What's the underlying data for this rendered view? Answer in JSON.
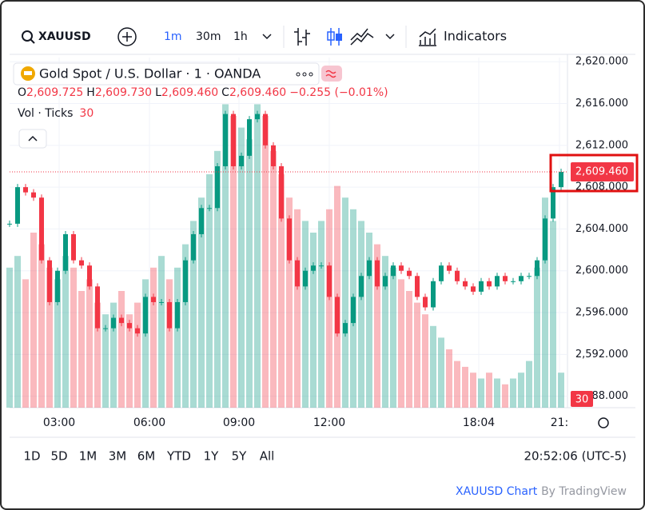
{
  "toolbar": {
    "symbol": "XAUUSD",
    "intervals": [
      "1m",
      "30m",
      "1h"
    ],
    "indicators": "Indicators"
  },
  "legend": {
    "title": "Gold Spot / U.S. Dollar · 1 · OANDA",
    "ohlc": [
      {
        "key": "O",
        "value": "2,609.725"
      },
      {
        "key": "H",
        "value": "2,609.730"
      },
      {
        "key": "L",
        "value": "2,609.460"
      },
      {
        "key": "C",
        "value": "2,609.460"
      }
    ],
    "change": "−0.255 (−0.01%)",
    "volume_label": "Vol · Ticks",
    "last_volume": 30
  },
  "chart_data": {
    "type": "candles",
    "up_color": "#089981",
    "down_color": "#f23645",
    "values": [
      2604.5,
      2608,
      2607.5,
      2607,
      2601,
      2597,
      2600,
      2603.5,
      2601,
      2600.5,
      2598.5,
      2594.5,
      2594.5,
      2595.5,
      2595,
      2594.5,
      2594,
      2597.5,
      2597,
      2597,
      2594.5,
      2597,
      2601,
      2603.5,
      2606,
      2606,
      2610,
      2615,
      2610,
      2611,
      2614.5,
      2615,
      2612,
      2610,
      2605,
      2601,
      2598.5,
      2600,
      2600.5,
      2600.5,
      2597.5,
      2594,
      2595,
      2597.5,
      2599.5,
      2601,
      2598.5,
      2599.5,
      2600.5,
      2600,
      2599.5,
      2597.5,
      2596.5,
      2599,
      2600.5,
      2600,
      2599,
      2598.5,
      2598,
      2599,
      2598.5,
      2599.5,
      2599,
      2599,
      2599.5,
      2599.5,
      2601,
      2605,
      2608,
      2609.46
    ],
    "volumes": [
      120,
      130,
      110,
      150,
      140,
      120,
      110,
      130,
      120,
      100,
      110,
      90,
      80,
      90,
      100,
      80,
      90,
      110,
      120,
      130,
      110,
      120,
      140,
      160,
      180,
      200,
      220,
      260,
      250,
      240,
      230,
      260,
      250,
      220,
      200,
      180,
      170,
      160,
      150,
      160,
      170,
      190,
      180,
      170,
      160,
      150,
      140,
      130,
      120,
      110,
      100,
      90,
      80,
      70,
      60,
      50,
      40,
      35,
      30,
      25,
      30,
      25,
      20,
      25,
      30,
      40,
      120,
      180,
      160,
      30
    ],
    "xlim": [
      0,
      70
    ],
    "xticks": [
      {
        "value": 6.2,
        "label": "03:00"
      },
      {
        "value": 17.5,
        "label": "06:00"
      },
      {
        "value": 28.7,
        "label": "09:00"
      },
      {
        "value": 40,
        "label": "12:00"
      },
      {
        "value": 58.7,
        "label": "18:04"
      },
      {
        "value": 68.8,
        "label": "21:"
      }
    ],
    "ylim": [
      2586.9,
      2620.4
    ],
    "yticks": [
      {
        "value": 2620,
        "label": "2,620.000"
      },
      {
        "value": 2616,
        "label": "2,616.000"
      },
      {
        "value": 2612,
        "label": "2,612.000"
      },
      {
        "value": 2608,
        "label": "2,608.000"
      },
      {
        "value": 2604,
        "label": "2,604.000"
      },
      {
        "value": 2600,
        "label": "2,600.000"
      },
      {
        "value": 2596,
        "label": "2,596.000"
      },
      {
        "value": 2592,
        "label": "2,592.000"
      },
      {
        "value": 2588,
        "label": "2,588.000"
      }
    ],
    "volume_ylim": [
      0,
      300
    ],
    "last_price": {
      "value": 2609.46,
      "label": "2,609.460"
    }
  },
  "ranges": [
    "1D",
    "5D",
    "1M",
    "3M",
    "6M",
    "YTD",
    "1Y",
    "5Y",
    "All"
  ],
  "clock": "20:52:06 (UTC-5)",
  "footer": {
    "link": "XAUUSD Chart",
    "by": "By TradingView"
  }
}
